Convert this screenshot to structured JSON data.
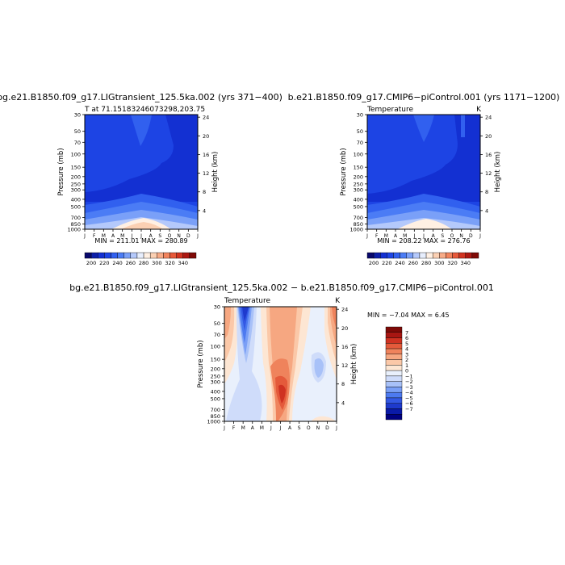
{
  "colors": {
    "abs_levels": [
      "#08086b",
      "#0c1ea8",
      "#1330d2",
      "#1d44e4",
      "#3160ef",
      "#4b7cf5",
      "#7aa0f8",
      "#b4c9fb",
      "#e7eefd",
      "#fff0e3",
      "#fbd0b3",
      "#f7ab87",
      "#f2845d",
      "#e7593a",
      "#d13320",
      "#ad1812",
      "#800a06"
    ],
    "diff_levels": [
      "#000080",
      "#0a1aa8",
      "#1e3acd",
      "#3358e4",
      "#4d7af0",
      "#7a9ff6",
      "#a8c1f8",
      "#cfdcfa",
      "#e9f0fc",
      "#fde6d3",
      "#fbc8a8",
      "#f6a781",
      "#ef835c",
      "#e45a3b",
      "#cf3222",
      "#a81612",
      "#7e0a07"
    ]
  },
  "chart_data": [
    {
      "type": "heatmap",
      "title": "bg.e21.B1850.f09_g17.LIGtransient_125.5ka.002 (yrs 371−400)",
      "subtitle_left": "T at 71.15183246073298,203.75",
      "subtitle_right": "",
      "xlabel": "",
      "ylabel": "Pressure (mb)",
      "ylabel_right": "Height (km)",
      "x_ticks": [
        "J",
        "F",
        "M",
        "A",
        "M",
        "J",
        "J",
        "A",
        "S",
        "O",
        "N",
        "D",
        "J"
      ],
      "y_ticks": [
        "30",
        "50",
        "70",
        "100",
        "150",
        "200",
        "250",
        "300",
        "400",
        "500",
        "700",
        "850",
        "1000"
      ],
      "y_right_ticks": [
        "24",
        "20",
        "16",
        "12",
        "8",
        "4"
      ],
      "summary": "MIN = 211.01 MAX = 280.89",
      "min": 211.01,
      "max": 280.89,
      "colorbar_labels": [
        "200",
        "220",
        "240",
        "260",
        "280",
        "300",
        "320",
        "340"
      ],
      "levels": [
        195,
        200,
        210,
        220,
        230,
        240,
        250,
        260,
        270,
        280,
        290,
        300,
        310,
        320,
        330,
        340,
        345
      ]
    },
    {
      "type": "heatmap",
      "title": "b.e21.B1850.f09_g17.CMIP6−piControl.001 (yrs 1171−1200)",
      "subtitle_left": "Temperature",
      "subtitle_right": "K",
      "xlabel": "",
      "ylabel": "Pressure (mb)",
      "ylabel_right": "Height (km)",
      "x_ticks": [
        "J",
        "F",
        "M",
        "A",
        "M",
        "J",
        "J",
        "A",
        "S",
        "O",
        "N",
        "D",
        "J"
      ],
      "y_ticks": [
        "30",
        "50",
        "70",
        "100",
        "150",
        "200",
        "250",
        "300",
        "400",
        "500",
        "700",
        "850",
        "1000"
      ],
      "y_right_ticks": [
        "24",
        "20",
        "16",
        "12",
        "8",
        "4"
      ],
      "summary": "MIN = 208.22 MAX = 276.76",
      "min": 208.22,
      "max": 276.76,
      "colorbar_labels": [
        "200",
        "220",
        "240",
        "260",
        "280",
        "300",
        "320",
        "340"
      ],
      "levels": [
        195,
        200,
        210,
        220,
        230,
        240,
        250,
        260,
        270,
        280,
        290,
        300,
        310,
        320,
        330,
        340,
        345
      ]
    },
    {
      "type": "heatmap",
      "title": "bg.e21.B1850.f09_g17.LIGtransient_125.5ka.002 − b.e21.B1850.f09_g17.CMIP6−piControl.001",
      "subtitle_left": "Temperature",
      "subtitle_right": "K",
      "xlabel": "",
      "ylabel": "Pressure (mb)",
      "ylabel_right": "Height (km)",
      "x_ticks": [
        "J",
        "F",
        "M",
        "A",
        "M",
        "J",
        "J",
        "A",
        "S",
        "O",
        "N",
        "D",
        "J"
      ],
      "y_ticks": [
        "30",
        "50",
        "70",
        "100",
        "150",
        "200",
        "250",
        "300",
        "400",
        "500",
        "700",
        "850",
        "1000"
      ],
      "y_right_ticks": [
        "24",
        "20",
        "16",
        "12",
        "8",
        "4"
      ],
      "summary": "MIN =  −7.04 MAX =   6.45",
      "min": -7.04,
      "max": 6.45,
      "colorbar_labels": [
        "7",
        "6",
        "5",
        "4",
        "3",
        "2",
        "1",
        "0",
        "−1",
        "−2",
        "−3",
        "−4",
        "−5",
        "−6",
        "−7"
      ],
      "levels": [
        -7.5,
        -7,
        -6,
        -5,
        -4,
        -3,
        -2,
        -1,
        -0.5,
        0.5,
        1,
        2,
        3,
        4,
        5,
        6,
        7
      ]
    }
  ]
}
